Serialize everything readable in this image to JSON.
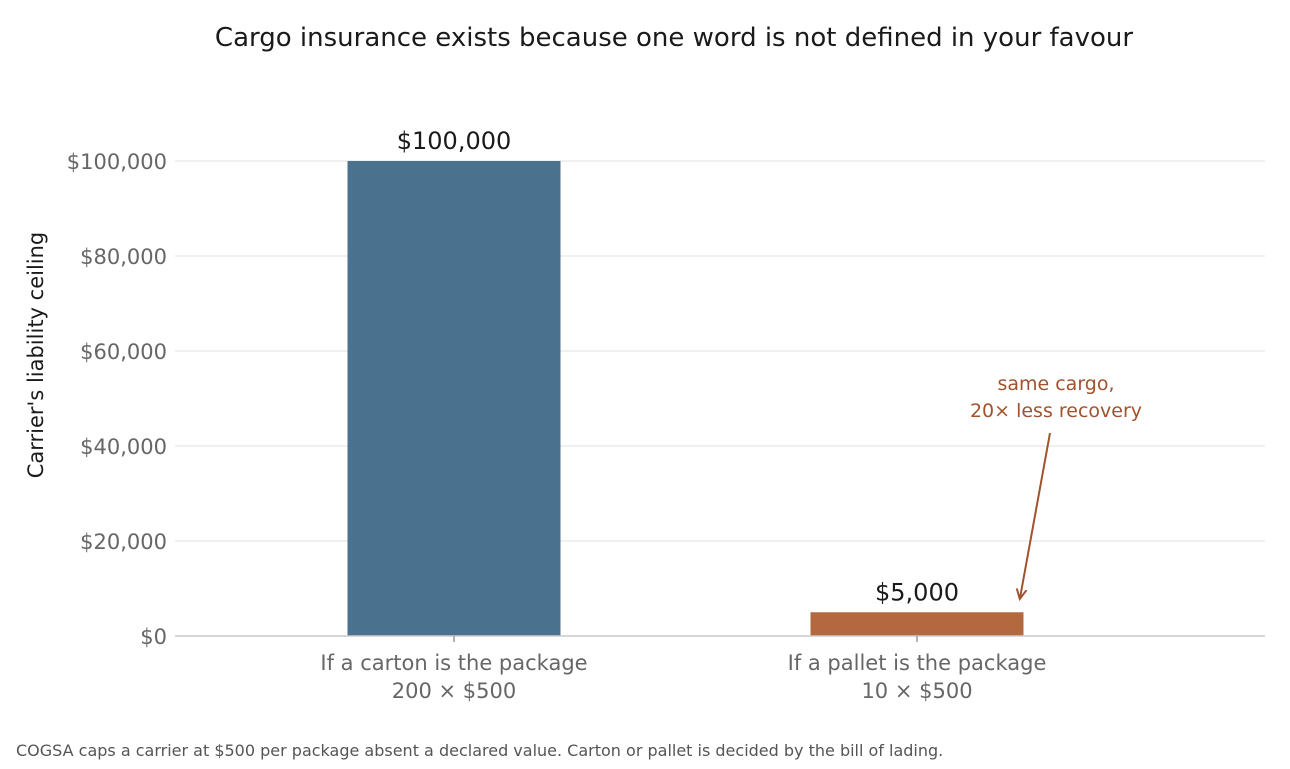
{
  "chart_data": {
    "type": "bar",
    "title": "Cargo insurance exists because one word is not defined in your favour",
    "ylabel": "Carrier's liability ceiling",
    "xlabel": "",
    "ylim": [
      0,
      100000
    ],
    "yticks": [
      0,
      20000,
      40000,
      60000,
      80000,
      100000
    ],
    "ytick_labels": [
      "$0",
      "$20,000",
      "$40,000",
      "$60,000",
      "$80,000",
      "$100,000"
    ],
    "grid": true,
    "categories": [
      {
        "line1": "If a carton is the package",
        "line2": "200 × $500"
      },
      {
        "line1": "If a pallet is the package",
        "line2": "10 × $500"
      }
    ],
    "values": [
      100000,
      5000
    ],
    "data_labels": [
      "$100,000",
      "$5,000"
    ],
    "colors": [
      "#4a728e",
      "#b36840"
    ],
    "annotation": {
      "line1": "same cargo,",
      "line2": "20× less recovery",
      "color": "#a0522d",
      "points_to_category": 1
    },
    "caption": "COGSA caps a carrier at $500 per package absent a declared value. Carton or pallet is decided by the bill of lading."
  }
}
